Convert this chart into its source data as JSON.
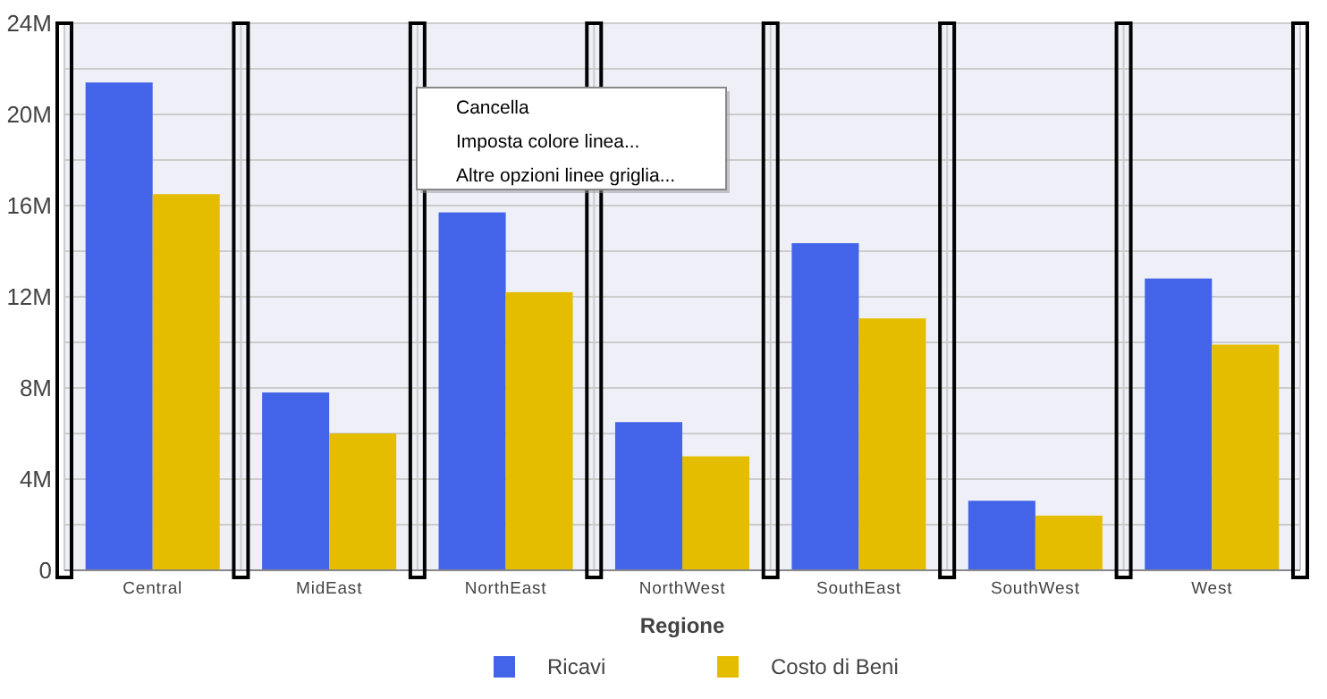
{
  "chart_data": {
    "type": "bar",
    "xlabel": "Regione",
    "categories": [
      "Central",
      "MidEast",
      "NorthEast",
      "NorthWest",
      "SouthEast",
      "SouthWest",
      "West"
    ],
    "series": [
      {
        "name": "Ricavi",
        "color": "#4363e8",
        "values": [
          21400000,
          7800000,
          15700000,
          6500000,
          14350000,
          3050000,
          12800000
        ]
      },
      {
        "name": "Costo di Beni",
        "color": "#e5bd00",
        "values": [
          16500000,
          6000000,
          12200000,
          5000000,
          11050000,
          2400000,
          9900000
        ]
      }
    ],
    "ylim": [
      0,
      24000000
    ],
    "yticks": [
      {
        "value": 0,
        "label": "0"
      },
      {
        "value": 2000000,
        "label": null
      },
      {
        "value": 4000000,
        "label": "4M"
      },
      {
        "value": 6000000,
        "label": null
      },
      {
        "value": 8000000,
        "label": "8M"
      },
      {
        "value": 10000000,
        "label": null
      },
      {
        "value": 12000000,
        "label": "12M"
      },
      {
        "value": 14000000,
        "label": null
      },
      {
        "value": 16000000,
        "label": "16M"
      },
      {
        "value": 18000000,
        "label": null
      },
      {
        "value": 20000000,
        "label": "20M"
      },
      {
        "value": 22000000,
        "label": null
      },
      {
        "value": 24000000,
        "label": "24M"
      }
    ],
    "grid": true,
    "legend": "bottom",
    "annotations": [
      "Cancella",
      "Imposta colore linea...",
      "Altre opzioni linee griglia..."
    ]
  }
}
